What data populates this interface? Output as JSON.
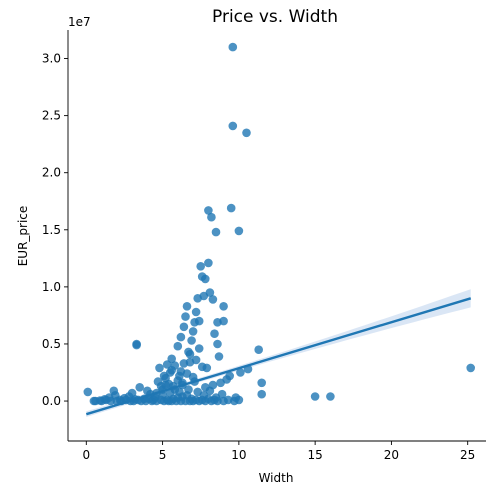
{
  "chart_data": {
    "type": "scatter",
    "title": "Price vs. Width",
    "xlabel": "Width",
    "ylabel": "EUR_price",
    "y_offset_label": "1e7",
    "xlim": [
      -1.2,
      26.2
    ],
    "ylim": [
      -3500000,
      32500000
    ],
    "x_ticks": [
      0,
      5,
      10,
      15,
      20,
      25
    ],
    "x_tick_labels": [
      "0",
      "5",
      "10",
      "15",
      "20",
      "25"
    ],
    "y_ticks": [
      0,
      5000000,
      10000000,
      15000000,
      20000000,
      25000000,
      30000000
    ],
    "y_tick_labels": [
      "0.0",
      "0.5",
      "1.0",
      "1.5",
      "2.0",
      "2.5",
      "3.0"
    ],
    "grid": false,
    "point_color": "#1f77b4",
    "regression": {
      "x_start": 0.0,
      "y_start": -1150000,
      "x_end": 25.2,
      "y_end": 9000000,
      "band_halfwidth_start": 250000,
      "band_halfwidth_end": 800000,
      "band_halfwidth_mid": 180000,
      "band_mid_x": 5.5,
      "line_color": "#1f77b4",
      "band_color": "#aec7e8"
    },
    "points": [
      [
        0.1,
        800000
      ],
      [
        0.6,
        0
      ],
      [
        0.9,
        50000
      ],
      [
        1.2,
        150000
      ],
      [
        1.5,
        300000
      ],
      [
        1.8,
        900000
      ],
      [
        1.9,
        500000
      ],
      [
        2.2,
        100000
      ],
      [
        2.5,
        250000
      ],
      [
        2.8,
        400000
      ],
      [
        3.0,
        700000
      ],
      [
        3.2,
        150000
      ],
      [
        3.3,
        4900000
      ],
      [
        3.3,
        5000000
      ],
      [
        3.5,
        1200000
      ],
      [
        3.8,
        200000
      ],
      [
        4.0,
        900000
      ],
      [
        4.2,
        600000
      ],
      [
        4.5,
        300000
      ],
      [
        4.7,
        1700000
      ],
      [
        4.8,
        2900000
      ],
      [
        5.0,
        500000
      ],
      [
        5.2,
        1400000
      ],
      [
        5.3,
        3200000
      ],
      [
        5.5,
        2500000
      ],
      [
        5.6,
        3700000
      ],
      [
        5.8,
        1000000
      ],
      [
        6.0,
        4800000
      ],
      [
        6.1,
        2200000
      ],
      [
        6.2,
        5600000
      ],
      [
        6.3,
        1600000
      ],
      [
        6.4,
        6500000
      ],
      [
        6.5,
        7400000
      ],
      [
        6.6,
        8300000
      ],
      [
        6.7,
        4300000
      ],
      [
        6.8,
        3400000
      ],
      [
        6.9,
        5300000
      ],
      [
        7.0,
        6100000
      ],
      [
        7.1,
        6900000
      ],
      [
        7.2,
        7800000
      ],
      [
        7.3,
        9000000
      ],
      [
        7.4,
        7000000
      ],
      [
        7.5,
        11800000
      ],
      [
        7.6,
        10900000
      ],
      [
        7.7,
        9200000
      ],
      [
        7.8,
        10700000
      ],
      [
        7.9,
        2900000
      ],
      [
        8.0,
        12100000
      ],
      [
        8.0,
        16700000
      ],
      [
        8.1,
        9500000
      ],
      [
        8.2,
        16100000
      ],
      [
        8.3,
        8900000
      ],
      [
        8.4,
        5900000
      ],
      [
        8.5,
        14800000
      ],
      [
        8.6,
        6900000
      ],
      [
        8.6,
        5000000
      ],
      [
        8.7,
        3900000
      ],
      [
        8.8,
        1600000
      ],
      [
        9.0,
        8300000
      ],
      [
        9.0,
        7000000
      ],
      [
        9.2,
        1900000
      ],
      [
        9.4,
        2200000
      ],
      [
        9.5,
        16900000
      ],
      [
        9.6,
        24100000
      ],
      [
        9.6,
        31000000
      ],
      [
        9.8,
        300000
      ],
      [
        10.0,
        14900000
      ],
      [
        10.1,
        2500000
      ],
      [
        10.5,
        23500000
      ],
      [
        10.6,
        2800000
      ],
      [
        11.3,
        4500000
      ],
      [
        11.5,
        1600000
      ],
      [
        11.5,
        600000
      ],
      [
        15.0,
        400000
      ],
      [
        16.0,
        400000
      ],
      [
        25.2,
        2900000
      ],
      [
        0.5,
        0
      ],
      [
        1.0,
        0
      ],
      [
        1.3,
        100000
      ],
      [
        1.6,
        0
      ],
      [
        2.0,
        0
      ],
      [
        2.3,
        0
      ],
      [
        2.6,
        100000
      ],
      [
        2.9,
        0
      ],
      [
        3.1,
        0
      ],
      [
        3.4,
        100000
      ],
      [
        3.6,
        0
      ],
      [
        3.9,
        0
      ],
      [
        4.1,
        200000
      ],
      [
        4.3,
        0
      ],
      [
        4.4,
        100000
      ],
      [
        4.6,
        0
      ],
      [
        4.9,
        100000
      ],
      [
        5.1,
        0
      ],
      [
        5.3,
        100000
      ],
      [
        5.4,
        0
      ],
      [
        5.6,
        0
      ],
      [
        5.7,
        200000
      ],
      [
        5.9,
        0
      ],
      [
        6.0,
        300000
      ],
      [
        6.2,
        0
      ],
      [
        6.3,
        400000
      ],
      [
        6.5,
        0
      ],
      [
        6.6,
        500000
      ],
      [
        6.8,
        0
      ],
      [
        6.9,
        200000
      ],
      [
        7.0,
        0
      ],
      [
        7.2,
        100000
      ],
      [
        7.4,
        0
      ],
      [
        7.6,
        100000
      ],
      [
        7.8,
        0
      ],
      [
        8.0,
        200000
      ],
      [
        8.2,
        0
      ],
      [
        8.4,
        100000
      ],
      [
        8.6,
        0
      ],
      [
        9.0,
        0
      ],
      [
        9.3,
        100000
      ],
      [
        9.7,
        0
      ],
      [
        10.0,
        100000
      ],
      [
        5.0,
        1000000
      ],
      [
        5.2,
        2000000
      ],
      [
        5.4,
        1500000
      ],
      [
        5.6,
        2700000
      ],
      [
        5.8,
        3100000
      ],
      [
        6.0,
        1800000
      ],
      [
        6.2,
        2600000
      ],
      [
        6.4,
        3300000
      ],
      [
        6.6,
        2400000
      ],
      [
        6.8,
        4100000
      ],
      [
        7.0,
        2100000
      ],
      [
        7.2,
        3600000
      ],
      [
        7.4,
        4600000
      ],
      [
        7.6,
        3000000
      ],
      [
        7.8,
        1200000
      ],
      [
        4.6,
        700000
      ],
      [
        4.9,
        1300000
      ],
      [
        5.1,
        2200000
      ],
      [
        5.5,
        700000
      ],
      [
        5.7,
        1300000
      ],
      [
        6.1,
        800000
      ],
      [
        6.3,
        1400000
      ],
      [
        6.7,
        1000000
      ],
      [
        7.1,
        1700000
      ],
      [
        7.3,
        800000
      ],
      [
        7.7,
        500000
      ],
      [
        8.1,
        900000
      ],
      [
        8.3,
        1400000
      ],
      [
        8.5,
        300000
      ],
      [
        8.9,
        600000
      ]
    ]
  }
}
